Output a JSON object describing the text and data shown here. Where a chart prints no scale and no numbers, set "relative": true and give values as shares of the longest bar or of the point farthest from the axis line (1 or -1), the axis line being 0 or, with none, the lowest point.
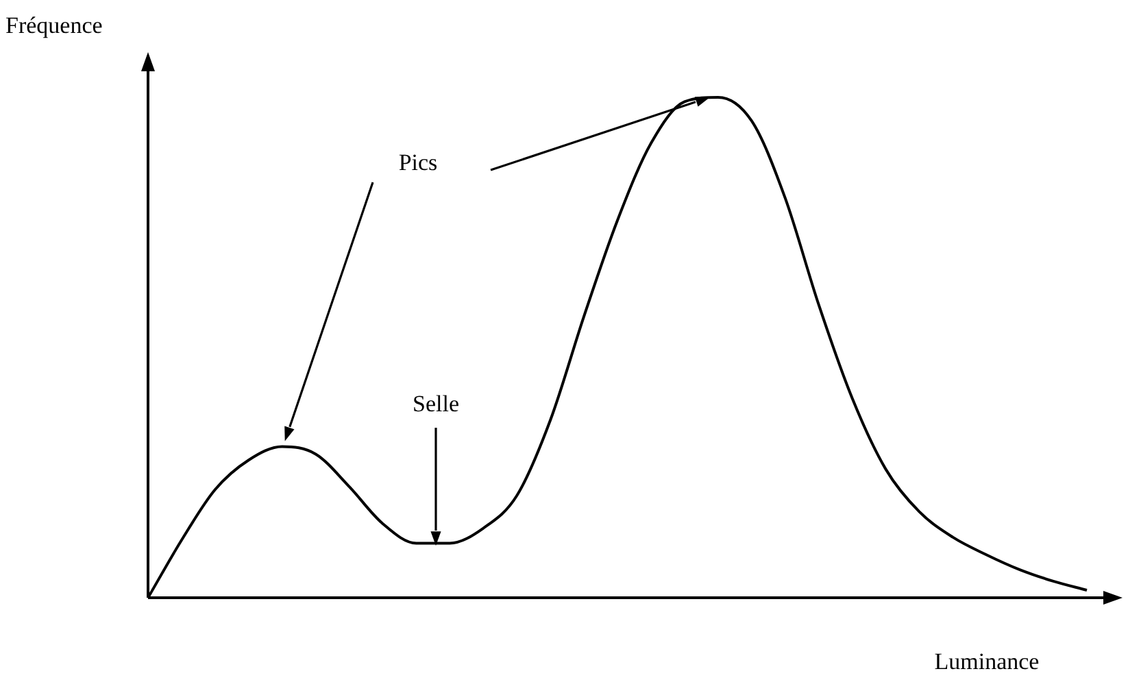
{
  "chart_data": {
    "type": "line",
    "relative": true,
    "xlabel": "Luminance",
    "ylabel": "Fréquence",
    "color": "#000000",
    "marker": "none",
    "legend": false,
    "annotations": [
      "Pics",
      "Selle"
    ],
    "categories": [
      null,
      null,
      null,
      null,
      null,
      null,
      null,
      null,
      null,
      null,
      null,
      null,
      null,
      null,
      null,
      null,
      null,
      null,
      null,
      null,
      null,
      null,
      null,
      null,
      null,
      null,
      null,
      null,
      null
    ],
    "values": [
      0,
      0.115,
      0.216,
      0.275,
      0.302,
      0.287,
      0.222,
      0.148,
      0.109,
      0.109,
      0.139,
      0.204,
      0.355,
      0.562,
      0.754,
      0.908,
      0.991,
      1,
      0.953,
      0.799,
      0.586,
      0.399,
      0.257,
      0.172,
      0.121,
      0.086,
      0.056,
      0.033,
      0.015
    ]
  }
}
